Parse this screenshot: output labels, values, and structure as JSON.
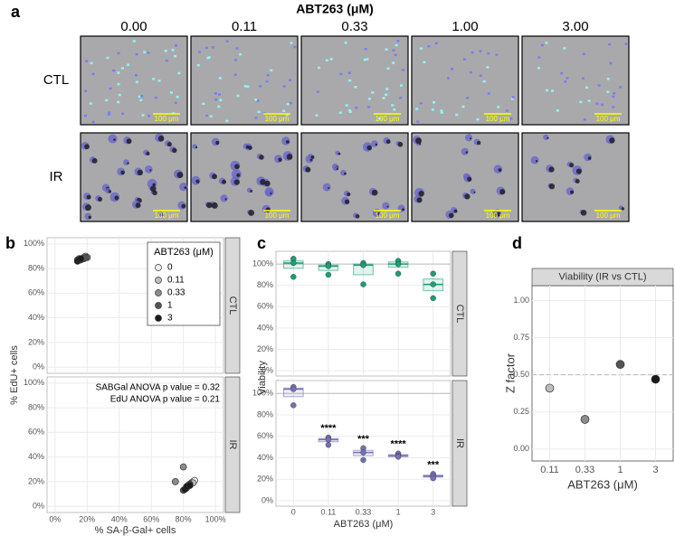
{
  "panel_labels": [
    "a",
    "b",
    "c",
    "d"
  ],
  "panel_a": {
    "title": "ABT263 (μM)",
    "columns": [
      "0.00",
      "0.11",
      "0.33",
      "1.00",
      "3.00"
    ],
    "rows": [
      "CTL",
      "IR"
    ],
    "scale_bar": "100 μm"
  },
  "chart_data": [
    {
      "type": "scatter",
      "x_label": "% SA-β-Gal+ cells",
      "y_label": "% EdU+ cells",
      "xlim": [
        -5,
        105
      ],
      "ylim": [
        -5,
        105
      ],
      "xticks": [
        {
          "value": 0,
          "label": "0%"
        },
        {
          "value": 20,
          "label": "20%"
        },
        {
          "value": 40,
          "label": "40%"
        },
        {
          "value": 60,
          "label": "60%"
        },
        {
          "value": 80,
          "label": "80%"
        },
        {
          "value": 100,
          "label": "100%"
        }
      ],
      "yticks": [
        {
          "value": 0,
          "label": "0%"
        },
        {
          "value": 20,
          "label": "20%"
        },
        {
          "value": 40,
          "label": "40%"
        },
        {
          "value": 60,
          "label": "60%"
        },
        {
          "value": 80,
          "label": "80%"
        },
        {
          "value": 100,
          "label": "100%"
        }
      ],
      "grid": true,
      "legend_title": "ABT263 (μM)",
      "legend": "top-right",
      "series": [
        {
          "name": "0",
          "color": "#eeeeee"
        },
        {
          "name": "0.11",
          "color": "#bdbdbd"
        },
        {
          "name": "0.33",
          "color": "#8c8c8c"
        },
        {
          "name": "1",
          "color": "#555555"
        },
        {
          "name": "3",
          "color": "#1a1a1a"
        }
      ],
      "facets": [
        {
          "label": "CTL",
          "series": [
            {
              "x": [
                17,
                19,
                20
              ],
              "y": [
                88,
                89,
                89
              ]
            },
            {
              "x": [
                15,
                18,
                19
              ],
              "y": [
                88,
                89,
                90
              ]
            },
            {
              "x": [
                16,
                18,
                20
              ],
              "y": [
                87,
                88,
                89
              ]
            },
            {
              "x": [
                14,
                17,
                19
              ],
              "y": [
                87,
                88,
                89
              ]
            },
            {
              "x": [
                14,
                15,
                16
              ],
              "y": [
                86,
                87,
                88
              ]
            }
          ]
        },
        {
          "label": "IR",
          "annotations": [
            "SABGal ANOVA p value = 0.32",
            "EdU ANOVA p value = 0.21"
          ],
          "series": [
            {
              "x": [
                85,
                86,
                87
              ],
              "y": [
                19,
                20,
                21
              ]
            },
            {
              "x": [
                82,
                84,
                86
              ],
              "y": [
                15,
                17,
                19
              ]
            },
            {
              "x": [
                75,
                80,
                83
              ],
              "y": [
                20,
                32,
                17
              ]
            },
            {
              "x": [
                80,
                82,
                84
              ],
              "y": [
                13,
                15,
                18
              ]
            },
            {
              "x": [
                81,
                82,
                84
              ],
              "y": [
                14,
                16,
                17
              ]
            }
          ]
        }
      ]
    },
    {
      "type": "box",
      "x_label": "ABT263 (μM)",
      "y_label": "Viability",
      "categories": [
        "0",
        "0.11",
        "0.33",
        "1",
        "3"
      ],
      "ylim": [
        -5,
        112
      ],
      "yticks": [
        {
          "value": 0,
          "label": "0%"
        },
        {
          "value": 20,
          "label": "20%"
        },
        {
          "value": 40,
          "label": "40%"
        },
        {
          "value": 60,
          "label": "60%"
        },
        {
          "value": 80,
          "label": "80%"
        },
        {
          "value": 100,
          "label": "100%"
        }
      ],
      "ref_line": 100,
      "grid": true,
      "facets": [
        {
          "label": "CTL",
          "color": "#1b9e77",
          "points": [
            [
              105,
              101,
              88
            ],
            [
              100,
              98,
              90
            ],
            [
              101,
              99,
              81
            ],
            [
              103,
              100,
              91
            ],
            [
              91,
              81,
              68
            ]
          ],
          "q1": [
            96,
            94,
            90,
            97,
            75
          ],
          "median": [
            101,
            98,
            99,
            100,
            81
          ],
          "q3": [
            103,
            99,
            100,
            102,
            86
          ]
        },
        {
          "label": "IR",
          "color": "#7570b3",
          "points": [
            [
              106,
              104,
              89
            ],
            [
              59,
              57,
              52
            ],
            [
              49,
              45,
              38
            ],
            [
              44,
              42,
              41
            ],
            [
              25,
              23,
              21
            ]
          ],
          "q1": [
            97,
            55,
            42,
            41,
            22
          ],
          "median": [
            104,
            57,
            45,
            42,
            23
          ],
          "q3": [
            105,
            58,
            47,
            43,
            24
          ],
          "signif": [
            null,
            "****",
            "***",
            "****",
            "***"
          ]
        }
      ]
    },
    {
      "type": "dot",
      "title": "Viability (IR vs CTL)",
      "x_label": "ABT263 (μM)",
      "y_label": "Z factor",
      "categories": [
        "0.11",
        "0.33",
        "1",
        "3"
      ],
      "values": [
        0.41,
        0.2,
        0.57,
        0.47
      ],
      "colors": [
        "#bdbdbd",
        "#8c8c8c",
        "#555555",
        "#1a1a1a"
      ],
      "ylim": [
        -0.08,
        1.1
      ],
      "yticks": [
        {
          "value": 0,
          "label": "0.00"
        },
        {
          "value": 0.25,
          "label": "0.25"
        },
        {
          "value": 0.5,
          "label": "0.50"
        },
        {
          "value": 0.75,
          "label": "0.75"
        },
        {
          "value": 1,
          "label": "1.00"
        }
      ],
      "ref_line": 0.5,
      "grid": true
    }
  ]
}
